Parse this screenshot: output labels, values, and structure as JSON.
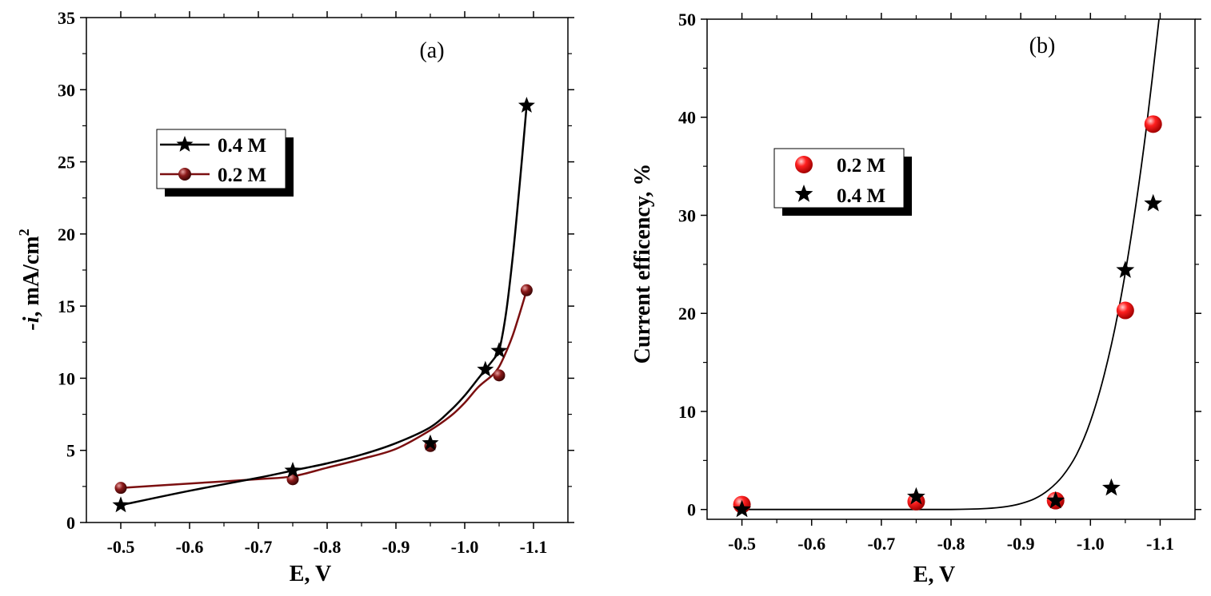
{
  "chart_data": [
    {
      "type": "line",
      "panel": "(a)",
      "xlabel": "E, V",
      "ylabel": "-i, mA/cm2",
      "ylabel_parts": {
        "italic": "-i",
        "rest": ", mA/cm",
        "sup": "2"
      },
      "xlim": [
        -0.45,
        -1.15
      ],
      "ylim": [
        0,
        35
      ],
      "xticks": [
        -0.5,
        -0.6,
        -0.7,
        -0.8,
        -0.9,
        -1.0,
        -1.1
      ],
      "xtick_labels": [
        "-0.5",
        "-0.6",
        "-0.7",
        "-0.8",
        "-0.9",
        "-1.0",
        "-1.1"
      ],
      "yticks": [
        0,
        5,
        10,
        15,
        20,
        25,
        30,
        35
      ],
      "ytick_labels": [
        "0",
        "5",
        "10",
        "15",
        "20",
        "25",
        "30",
        "35"
      ],
      "series": [
        {
          "name": "0.4 M",
          "marker": "star",
          "color": "#000000",
          "x": [
            -0.5,
            -0.75,
            -0.95,
            -1.03,
            -1.05,
            -1.09
          ],
          "y": [
            1.2,
            3.6,
            5.5,
            10.6,
            11.9,
            28.9
          ],
          "curve_x": [
            -0.5,
            -0.6,
            -0.7,
            -0.75,
            -0.8,
            -0.85,
            -0.9,
            -0.95,
            -0.98,
            -1.0,
            -1.02,
            -1.03,
            -1.045,
            -1.05,
            -1.06,
            -1.07,
            -1.08,
            -1.09
          ],
          "curve_y": [
            1.2,
            2.2,
            3.1,
            3.6,
            4.1,
            4.7,
            5.5,
            6.6,
            7.8,
            8.8,
            10.0,
            10.6,
            11.5,
            11.9,
            14.5,
            18.5,
            23.5,
            28.9
          ]
        },
        {
          "name": "0.2 M",
          "marker": "sphere",
          "color": "#7b0f10",
          "x": [
            -0.5,
            -0.75,
            -0.95,
            -1.05,
            -1.09
          ],
          "y": [
            2.4,
            3.0,
            5.3,
            10.2,
            16.1
          ],
          "curve_x": [
            -0.5,
            -0.6,
            -0.7,
            -0.75,
            -0.8,
            -0.85,
            -0.9,
            -0.95,
            -0.98,
            -1.0,
            -1.02,
            -1.04,
            -1.05,
            -1.06,
            -1.07,
            -1.08,
            -1.09
          ],
          "curve_y": [
            2.4,
            2.7,
            3.0,
            3.2,
            3.8,
            4.4,
            5.1,
            6.4,
            7.4,
            8.3,
            9.4,
            10.2,
            10.8,
            11.8,
            13.0,
            14.5,
            16.1
          ]
        }
      ],
      "legend": [
        "0.4 M",
        "0.2 M"
      ],
      "legend_position": "upper-left"
    },
    {
      "type": "scatter",
      "panel": "(b)",
      "xlabel": "E, V",
      "ylabel": "Current efficency, %",
      "xlim": [
        -0.45,
        -1.15
      ],
      "ylim": [
        -1,
        50
      ],
      "xticks": [
        -0.5,
        -0.6,
        -0.7,
        -0.8,
        -0.9,
        -1.0,
        -1.1
      ],
      "xtick_labels": [
        "-0.5",
        "-0.6",
        "-0.7",
        "-0.8",
        "-0.9",
        "-1.0",
        "-1.1"
      ],
      "yticks": [
        0,
        10,
        20,
        30,
        40,
        50
      ],
      "ytick_labels": [
        "0",
        "10",
        "20",
        "30",
        "40",
        "50"
      ],
      "series": [
        {
          "name": "0.2 M",
          "marker": "sphere",
          "color": "#ff1a1a",
          "x": [
            -0.5,
            -0.75,
            -0.95,
            -1.05,
            -1.09
          ],
          "y": [
            0.5,
            0.8,
            0.9,
            20.3,
            39.3
          ]
        },
        {
          "name": "0.4 M",
          "marker": "star",
          "color": "#000000",
          "x": [
            -0.5,
            -0.75,
            -0.95,
            -1.03,
            -1.05,
            -1.09
          ],
          "y": [
            0.0,
            1.3,
            0.9,
            2.2,
            24.4,
            31.2
          ]
        }
      ],
      "fit_curve": {
        "x": [
          -0.5,
          -0.7,
          -0.8,
          -0.85,
          -0.88,
          -0.9,
          -0.92,
          -0.94,
          -0.96,
          -0.98,
          -1.0,
          -1.02,
          -1.04,
          -1.06,
          -1.08,
          -1.1
        ],
        "y": [
          0,
          0,
          0,
          0.1,
          0.3,
          0.6,
          1.1,
          2.0,
          3.4,
          5.6,
          9.0,
          13.8,
          20.2,
          28.6,
          38.8,
          51.0
        ]
      },
      "legend": [
        "0.2 M",
        "0.4 M"
      ],
      "legend_position": "upper-left"
    }
  ]
}
